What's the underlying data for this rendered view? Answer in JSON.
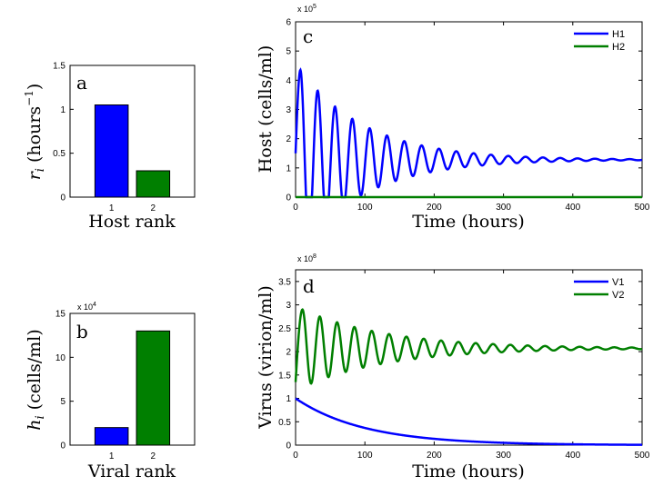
{
  "colors": {
    "blue": "#0000ff",
    "green": "#007f00"
  },
  "chart_data": [
    {
      "id": "a",
      "panel_label": "a",
      "type": "bar",
      "categories": [
        "1",
        "2"
      ],
      "values": [
        1.05,
        0.3
      ],
      "bar_colors": [
        "#0000ff",
        "#007f00"
      ],
      "ylim": [
        0,
        1.5
      ],
      "yticks": [
        "0",
        "0.5",
        "1",
        "1.5"
      ],
      "ylabel": "r_i (hours^-1)",
      "xlabel": "Host rank",
      "scale_note": ""
    },
    {
      "id": "b",
      "panel_label": "b",
      "type": "bar",
      "categories": [
        "1",
        "2"
      ],
      "values": [
        20000,
        130000
      ],
      "bar_colors": [
        "#0000ff",
        "#007f00"
      ],
      "ylim": [
        0,
        150000
      ],
      "yticks": [
        "0",
        "5",
        "10",
        "15"
      ],
      "ylabel": "h_i (cells/ml)",
      "xlabel": "Viral rank",
      "scale_note": "x 10",
      "scale_exp": "4"
    },
    {
      "id": "c",
      "panel_label": "c",
      "type": "line",
      "xlim": [
        0,
        500
      ],
      "ylim": [
        0,
        600000
      ],
      "xticks": [
        "0",
        "100",
        "200",
        "300",
        "400",
        "500"
      ],
      "yticks": [
        "0",
        "1",
        "2",
        "3",
        "4",
        "5",
        "6"
      ],
      "xlabel": "Time (hours)",
      "ylabel": "Host (cells/ml)",
      "scale_note": "x 10",
      "scale_exp": "5",
      "legend_position": "top-right",
      "series": [
        {
          "name": "H1",
          "color": "#0000ff",
          "shape": "damped_oscillation",
          "start": 150000,
          "peak_first": 435000,
          "first_peak_t": 7,
          "period": 25,
          "equilibrium": 128000,
          "damping": 0.0105
        },
        {
          "name": "H2",
          "color": "#007f00",
          "shape": "flat",
          "value": 0
        }
      ]
    },
    {
      "id": "d",
      "panel_label": "d",
      "type": "line",
      "xlim": [
        0,
        500
      ],
      "ylim": [
        0,
        375000000
      ],
      "xticks": [
        "0",
        "100",
        "200",
        "300",
        "400",
        "500"
      ],
      "yticks": [
        "0",
        "0.5",
        "1",
        "1.5",
        "2",
        "2.5",
        "3",
        "3.5"
      ],
      "xlabel": "Time (hours)",
      "ylabel": "Virus (virion/ml)",
      "scale_note": "x 10",
      "scale_exp": "8",
      "legend_position": "top-right",
      "series": [
        {
          "name": "V1",
          "color": "#0000ff",
          "shape": "decay",
          "start": 100000000,
          "tau": 100,
          "end": 0
        },
        {
          "name": "V2",
          "color": "#007f00",
          "shape": "damped_oscillation",
          "start": 135000000,
          "peak_first": 290000000,
          "first_peak_t": 10,
          "period": 25,
          "equilibrium": 207000000,
          "damping": 0.008
        }
      ]
    }
  ]
}
